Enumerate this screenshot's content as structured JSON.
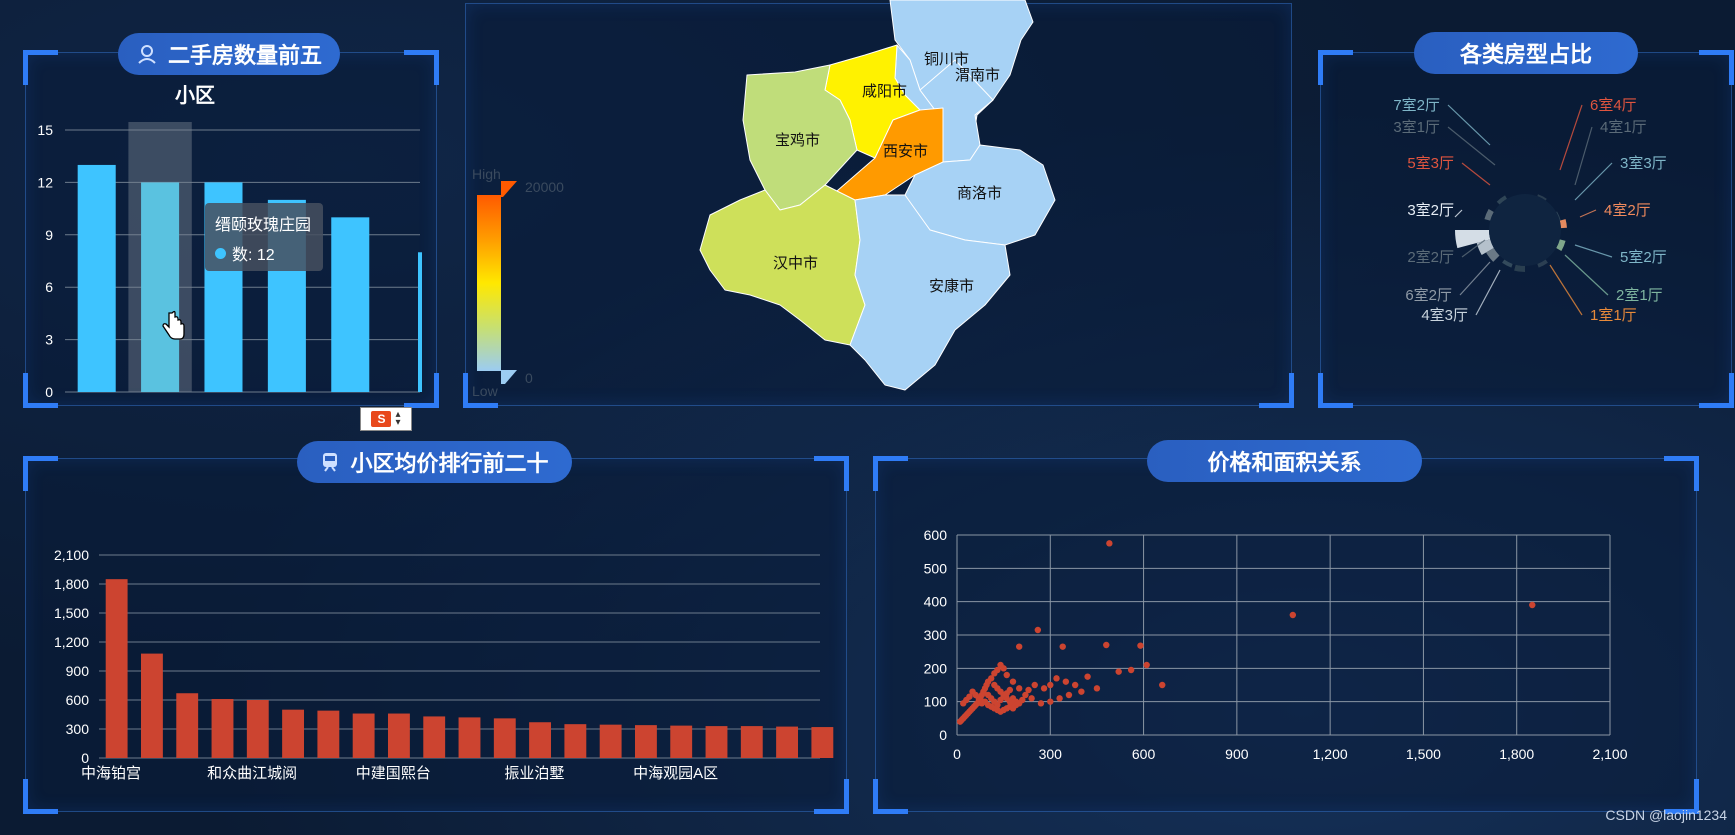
{
  "panels": {
    "top5": {
      "title": "二手房数量前五"
    },
    "pie": {
      "title": "各类房型占比"
    },
    "rank20": {
      "title": "小区均价排行前二十"
    },
    "scatter": {
      "title": "价格和面积关系"
    }
  },
  "tooltip": {
    "name": "缙颐玫瑰庄园",
    "label": "数: 12"
  },
  "watermark": "CSDN @laojin1234",
  "ime": {
    "label": "S"
  },
  "colors": {
    "bar_blue": "#3ec4ff",
    "bar_red": "#cc4430",
    "map_high": "#ff6a00",
    "map_low": "#a7d2f5"
  },
  "chart_data": [
    {
      "type": "bar",
      "title": "小区",
      "categories": [
        "",
        "缙颐玫瑰庄园",
        "",
        "",
        ""
      ],
      "values": [
        13,
        12,
        12,
        11,
        10
      ],
      "ylim": [
        0,
        15
      ],
      "yticks": [
        "0",
        "3",
        "6",
        "9",
        "12",
        "15"
      ],
      "highlighted_index": 1
    },
    {
      "type": "map",
      "regions": [
        "铜川市",
        "渭南市",
        "咸阳市",
        "宝鸡市",
        "西安市",
        "商洛市",
        "汉中市",
        "安康市"
      ],
      "visualmap": {
        "high_label": "High",
        "low_label": "Low",
        "max": "20000",
        "min": "0"
      }
    },
    {
      "type": "pie",
      "rose": true,
      "labels": [
        {
          "text": "7室2厅",
          "color": "#7fb6c8"
        },
        {
          "text": "3室1厅",
          "color": "#5b6b78"
        },
        {
          "text": "5室3厅",
          "color": "#e0553f"
        },
        {
          "text": "3室2厅",
          "color": "#e6edf5"
        },
        {
          "text": "2室2厅",
          "color": "#5b6b78"
        },
        {
          "text": "6室2厅",
          "color": "#8f9aa6"
        },
        {
          "text": "4室3厅",
          "color": "#c9d4de"
        },
        {
          "text": "6室4厅",
          "color": "#e0553f"
        },
        {
          "text": "4室1厅",
          "color": "#5b6b78"
        },
        {
          "text": "3室3厅",
          "color": "#7fb6c8"
        },
        {
          "text": "4室2厅",
          "color": "#f08a5d"
        },
        {
          "text": "5室2厅",
          "color": "#7fb6c8"
        },
        {
          "text": "2室1厅",
          "color": "#7fb6a0"
        },
        {
          "text": "1室1厅",
          "color": "#e88a3a"
        }
      ]
    },
    {
      "type": "bar",
      "categories": [
        "中海铂宫",
        "",
        "和众曲江城阅",
        "",
        "中建国熙台",
        "",
        "振业泊墅",
        "",
        "中海观园A区",
        "",
        "",
        "",
        "",
        "",
        "",
        "",
        "",
        "",
        "",
        "",
        ""
      ],
      "xtick_labels": [
        "中海铂宫",
        "和众曲江城阅",
        "中建国熙台",
        "振业泊墅",
        "中海观园A区"
      ],
      "values": [
        1850,
        1080,
        670,
        610,
        600,
        500,
        490,
        460,
        460,
        430,
        420,
        410,
        370,
        350,
        345,
        340,
        335,
        330,
        330,
        325,
        320
      ],
      "ylim": [
        0,
        2100
      ],
      "yticks": [
        "0",
        "300",
        "600",
        "900",
        "1,200",
        "1,500",
        "1,800",
        "2,100"
      ]
    },
    {
      "type": "scatter",
      "xlim": [
        0,
        2100
      ],
      "ylim": [
        0,
        600
      ],
      "xticks": [
        "0",
        "300",
        "600",
        "900",
        "1,200",
        "1,500",
        "1,800",
        "2,100"
      ],
      "yticks": [
        "0",
        "100",
        "200",
        "300",
        "400",
        "500",
        "600"
      ],
      "grid": true,
      "points": [
        [
          490,
          575
        ],
        [
          1080,
          360
        ],
        [
          1850,
          390
        ],
        [
          260,
          315
        ],
        [
          340,
          265
        ],
        [
          480,
          270
        ],
        [
          590,
          268
        ],
        [
          610,
          210
        ],
        [
          560,
          195
        ],
        [
          660,
          150
        ],
        [
          200,
          265
        ],
        [
          320,
          170
        ],
        [
          300,
          150
        ],
        [
          280,
          140
        ],
        [
          250,
          150
        ],
        [
          230,
          135
        ],
        [
          350,
          160
        ],
        [
          380,
          150
        ],
        [
          420,
          175
        ],
        [
          450,
          140
        ],
        [
          520,
          190
        ],
        [
          400,
          130
        ],
        [
          360,
          120
        ],
        [
          330,
          110
        ],
        [
          300,
          100
        ],
        [
          270,
          95
        ],
        [
          240,
          110
        ],
        [
          220,
          120
        ],
        [
          200,
          140
        ],
        [
          180,
          160
        ],
        [
          160,
          180
        ],
        [
          150,
          200
        ],
        [
          140,
          210
        ],
        [
          130,
          195
        ],
        [
          120,
          185
        ],
        [
          110,
          170
        ],
        [
          100,
          160
        ],
        [
          95,
          150
        ],
        [
          90,
          140
        ],
        [
          85,
          130
        ],
        [
          80,
          120
        ],
        [
          75,
          110
        ],
        [
          70,
          100
        ],
        [
          65,
          95
        ],
        [
          60,
          90
        ],
        [
          55,
          85
        ],
        [
          50,
          80
        ],
        [
          45,
          75
        ],
        [
          40,
          70
        ],
        [
          35,
          65
        ],
        [
          30,
          60
        ],
        [
          25,
          55
        ],
        [
          20,
          50
        ],
        [
          15,
          45
        ],
        [
          10,
          40
        ],
        [
          100,
          120
        ],
        [
          110,
          110
        ],
        [
          120,
          100
        ],
        [
          130,
          90
        ],
        [
          140,
          105
        ],
        [
          150,
          115
        ],
        [
          160,
          125
        ],
        [
          170,
          135
        ],
        [
          180,
          110
        ],
        [
          190,
          100
        ],
        [
          200,
          95
        ],
        [
          210,
          105
        ],
        [
          90,
          100
        ],
        [
          80,
          95
        ],
        [
          70,
          110
        ],
        [
          60,
          120
        ],
        [
          50,
          130
        ],
        [
          40,
          115
        ],
        [
          30,
          105
        ],
        [
          20,
          95
        ],
        [
          120,
          150
        ],
        [
          130,
          140
        ],
        [
          140,
          130
        ],
        [
          150,
          120
        ],
        [
          160,
          110
        ],
        [
          170,
          100
        ],
        [
          180,
          95
        ],
        [
          190,
          90
        ],
        [
          100,
          90
        ],
        [
          110,
          85
        ],
        [
          120,
          80
        ],
        [
          130,
          75
        ],
        [
          140,
          70
        ],
        [
          150,
          75
        ],
        [
          160,
          80
        ],
        [
          170,
          85
        ],
        [
          180,
          80
        ]
      ]
    }
  ]
}
